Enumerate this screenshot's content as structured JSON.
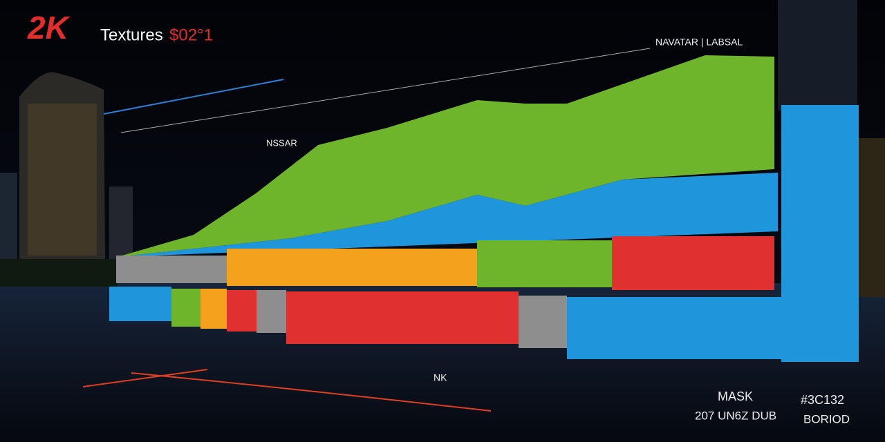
{
  "header": {
    "logo": "2K",
    "title": "Textures",
    "suffix": "$02°1"
  },
  "labels": {
    "top_right": "NAVATAR | LABSAL",
    "mid_left": "NSSAR",
    "bottom_mid": "NK",
    "bottom_right_1": "MASK",
    "bottom_right_2": "207 UN6Z DUB",
    "bottom_far_right_1": "#3C132",
    "bottom_far_right_2": "BORIOD"
  }
}
